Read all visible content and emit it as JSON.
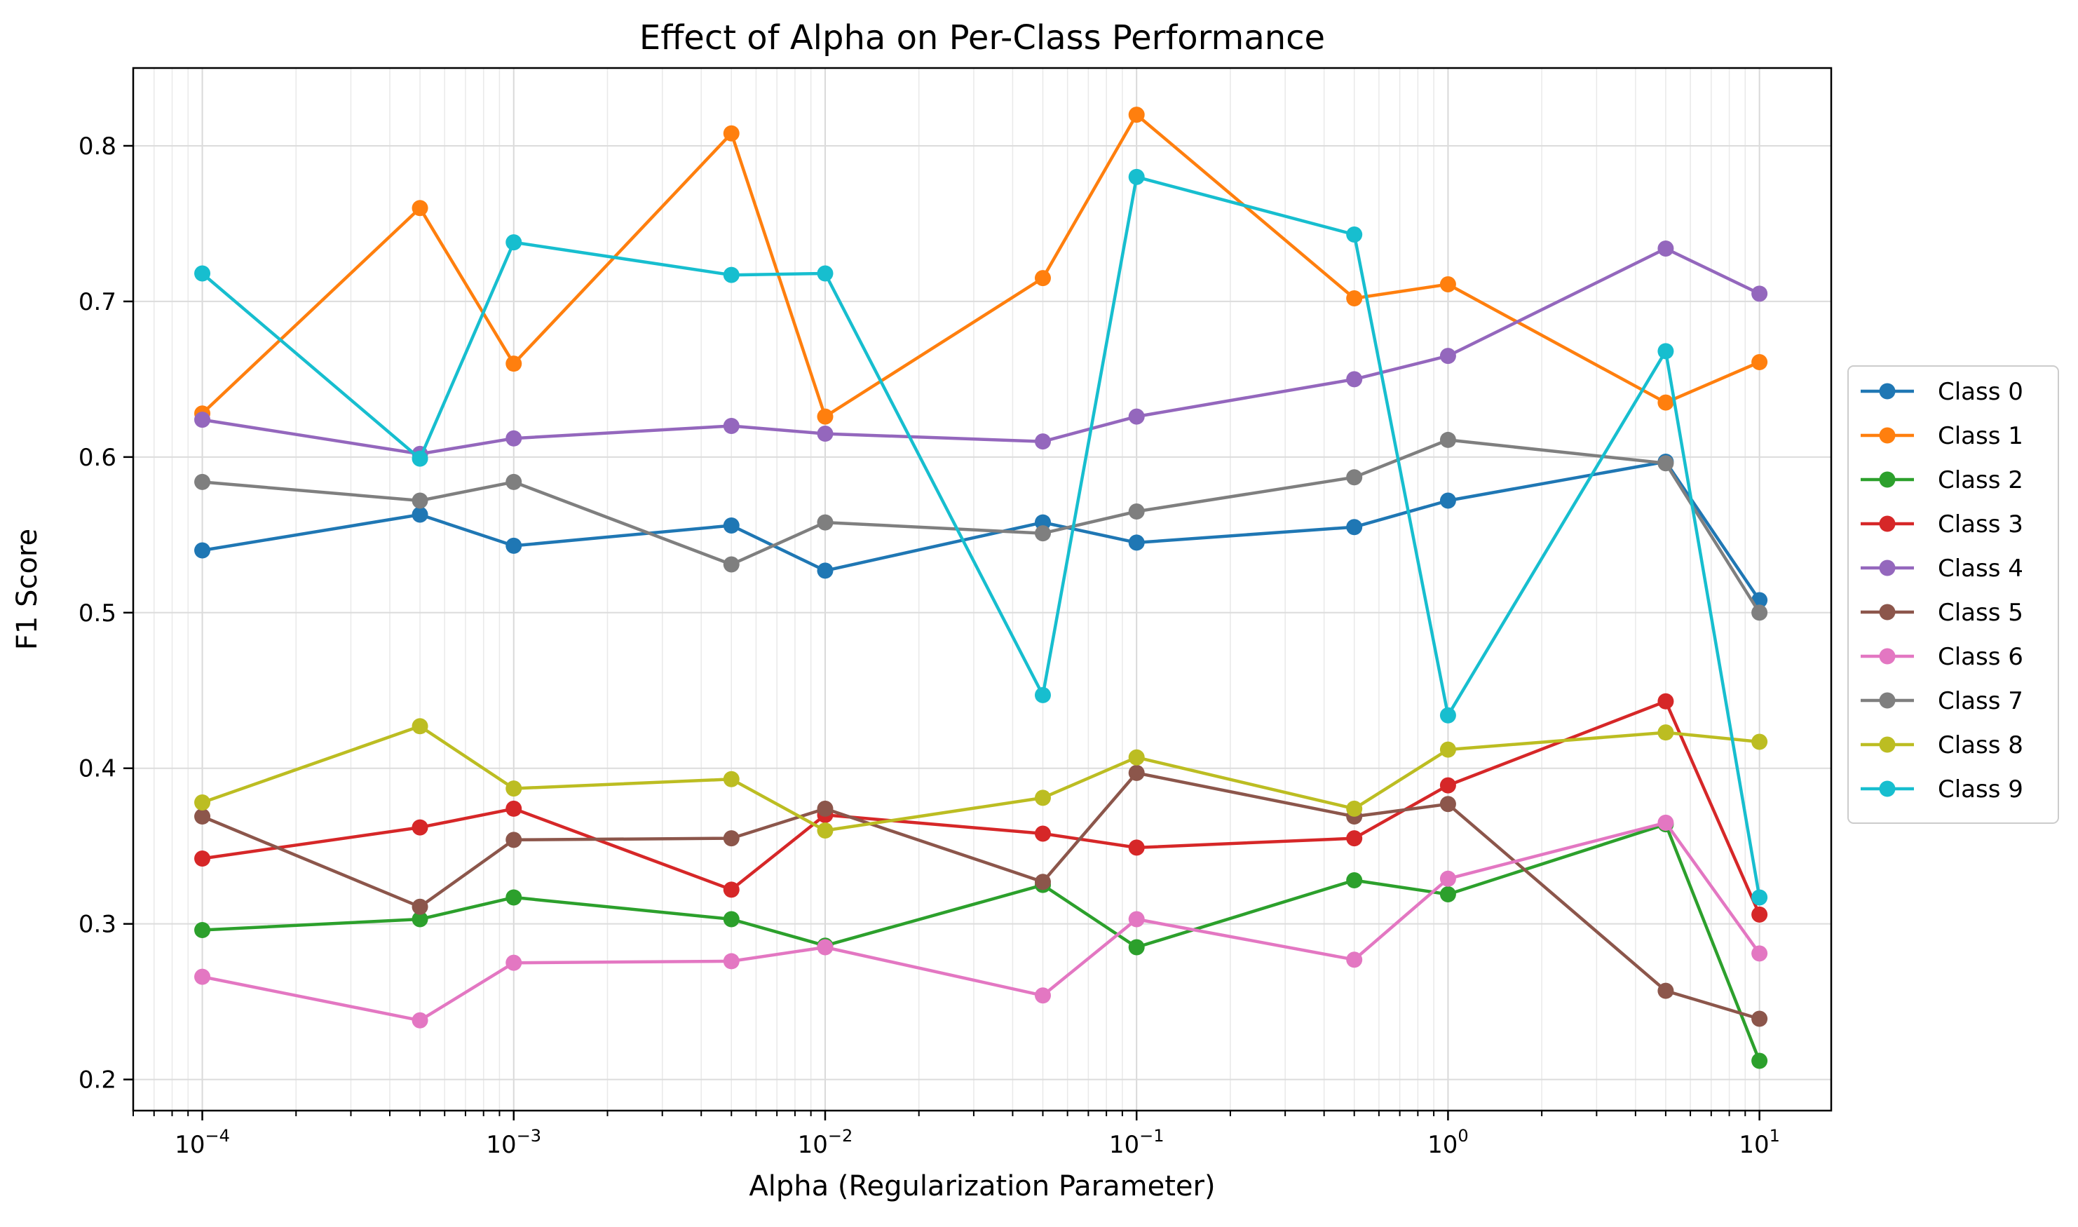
{
  "chart_data": {
    "type": "line",
    "title": "Effect of Alpha on Per-Class Performance",
    "xlabel": "Alpha (Regularization Parameter)",
    "ylabel": "F1 Score",
    "xscale": "log",
    "x": [
      0.0001,
      0.0005,
      0.001,
      0.005,
      0.01,
      0.05,
      0.1,
      0.5,
      1,
      5,
      10
    ],
    "xlim": [
      6e-05,
      17
    ],
    "ylim": [
      0.18,
      0.85
    ],
    "xticks": [
      {
        "value": 0.0001,
        "base": "10",
        "exp": "−4"
      },
      {
        "value": 0.001,
        "base": "10",
        "exp": "−3"
      },
      {
        "value": 0.01,
        "base": "10",
        "exp": "−2"
      },
      {
        "value": 0.1,
        "base": "10",
        "exp": "−1"
      },
      {
        "value": 1,
        "base": "10",
        "exp": "0"
      },
      {
        "value": 10,
        "base": "10",
        "exp": "1"
      }
    ],
    "yticks": [
      {
        "value": 0.2,
        "label": "0.2"
      },
      {
        "value": 0.3,
        "label": "0.3"
      },
      {
        "value": 0.4,
        "label": "0.4"
      },
      {
        "value": 0.5,
        "label": "0.5"
      },
      {
        "value": 0.6,
        "label": "0.6"
      },
      {
        "value": 0.7,
        "label": "0.7"
      },
      {
        "value": 0.8,
        "label": "0.8"
      }
    ],
    "grid": true,
    "legend_position": "center-right-outside",
    "series": [
      {
        "name": "Class 0",
        "color": "#1f77b4",
        "values": [
          0.54,
          0.563,
          0.543,
          0.556,
          0.527,
          0.558,
          0.545,
          0.555,
          0.572,
          0.597,
          0.508
        ]
      },
      {
        "name": "Class 1",
        "color": "#ff7f0e",
        "values": [
          0.628,
          0.76,
          0.66,
          0.808,
          0.626,
          0.715,
          0.82,
          0.702,
          0.711,
          0.635,
          0.661
        ]
      },
      {
        "name": "Class 2",
        "color": "#2ca02c",
        "values": [
          0.296,
          0.303,
          0.317,
          0.303,
          0.286,
          0.325,
          0.285,
          0.328,
          0.319,
          0.364,
          0.212
        ]
      },
      {
        "name": "Class 3",
        "color": "#d62728",
        "values": [
          0.342,
          0.362,
          0.374,
          0.322,
          0.37,
          0.358,
          0.349,
          0.355,
          0.389,
          0.443,
          0.306
        ]
      },
      {
        "name": "Class 4",
        "color": "#9467bd",
        "values": [
          0.624,
          0.602,
          0.612,
          0.62,
          0.615,
          0.61,
          0.626,
          0.65,
          0.665,
          0.734,
          0.705
        ]
      },
      {
        "name": "Class 5",
        "color": "#8c564b",
        "values": [
          0.369,
          0.311,
          0.354,
          0.355,
          0.374,
          0.327,
          0.397,
          0.369,
          0.377,
          0.257,
          0.239
        ]
      },
      {
        "name": "Class 6",
        "color": "#e377c2",
        "values": [
          0.266,
          0.238,
          0.275,
          0.276,
          0.285,
          0.254,
          0.303,
          0.277,
          0.329,
          0.365,
          0.281
        ]
      },
      {
        "name": "Class 7",
        "color": "#7f7f7f",
        "values": [
          0.584,
          0.572,
          0.584,
          0.531,
          0.558,
          0.551,
          0.565,
          0.587,
          0.611,
          0.596,
          0.5
        ]
      },
      {
        "name": "Class 8",
        "color": "#bcbd22",
        "values": [
          0.378,
          0.427,
          0.387,
          0.393,
          0.36,
          0.381,
          0.407,
          0.374,
          0.412,
          0.423,
          0.417
        ]
      },
      {
        "name": "Class 9",
        "color": "#17becf",
        "values": [
          0.718,
          0.599,
          0.738,
          0.717,
          0.718,
          0.447,
          0.78,
          0.743,
          0.434,
          0.668,
          0.317
        ]
      }
    ]
  }
}
